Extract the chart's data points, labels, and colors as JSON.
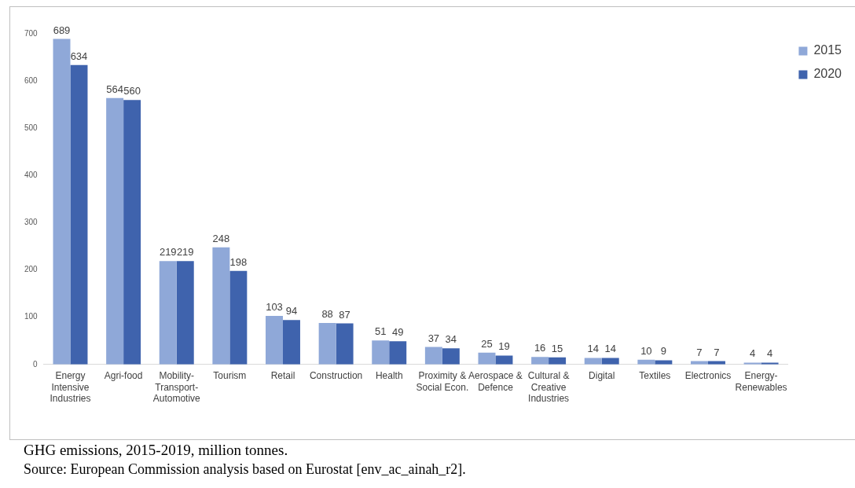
{
  "chart_data": {
    "type": "bar",
    "categories": [
      "Energy Intensive Industries",
      "Agri-food",
      "Mobility-Transport-Automotive",
      "Tourism",
      "Retail",
      "Construction",
      "Health",
      "Proximity & Social Econ.",
      "Aerospace & Defence",
      "Cultural & Creative Industries",
      "Digital",
      "Textiles",
      "Electronics",
      "Energy-Renewables"
    ],
    "series": [
      {
        "name": "2015",
        "color": "#8fa8d8",
        "values": [
          689,
          564,
          219,
          248,
          103,
          88,
          51,
          37,
          25,
          16,
          14,
          10,
          7,
          4
        ]
      },
      {
        "name": "2020",
        "color": "#3f63ad",
        "values": [
          634,
          560,
          219,
          198,
          94,
          87,
          49,
          34,
          19,
          15,
          14,
          9,
          7,
          4
        ]
      }
    ],
    "ylim": [
      0,
      700
    ],
    "yticks": [
      0,
      100,
      200,
      300,
      400,
      500,
      600,
      700
    ],
    "grid": false,
    "legend": "top right",
    "data_labels": true,
    "annotations": [
      "GHG emissions, 2015-2019, million tonnes.",
      "Source: European Commission analysis based on Eurostat [env_ac_ainah_r2]."
    ]
  }
}
